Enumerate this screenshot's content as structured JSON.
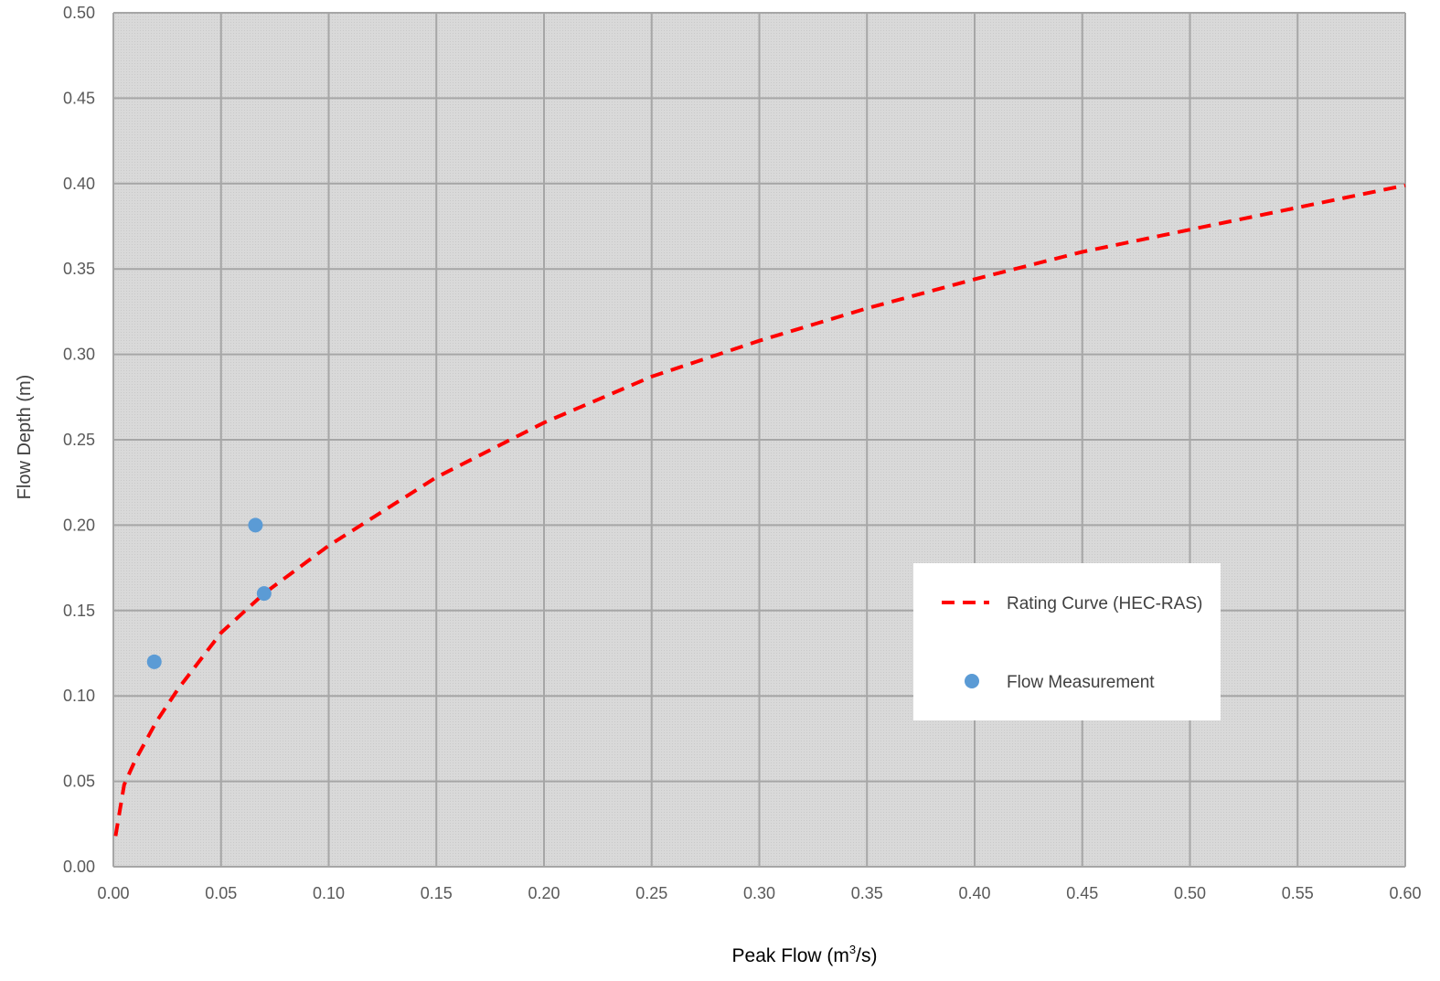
{
  "chart_data": {
    "type": "scatter",
    "title": "",
    "xlabel": "Peak Flow (m",
    "xlabel_sup": "3",
    "xlabel_tail": "/s)",
    "ylabel": "Flow Depth (m)",
    "xlim": [
      0.0,
      0.6
    ],
    "ylim": [
      0.0,
      0.5
    ],
    "x_ticks": [
      "0.00",
      "0.05",
      "0.10",
      "0.15",
      "0.20",
      "0.25",
      "0.30",
      "0.35",
      "0.40",
      "0.45",
      "0.50",
      "0.55",
      "0.60"
    ],
    "y_ticks": [
      "0.00",
      "0.05",
      "0.10",
      "0.15",
      "0.20",
      "0.25",
      "0.30",
      "0.35",
      "0.40",
      "0.45",
      "0.50"
    ],
    "grid": true,
    "legend_position": "center-right",
    "series": [
      {
        "name": "Rating Curve (HEC-RAS)",
        "kind": "line",
        "style": "dashed",
        "color": "#ff0000",
        "x": [
          0.001,
          0.005,
          0.01,
          0.02,
          0.03,
          0.05,
          0.07,
          0.1,
          0.15,
          0.2,
          0.25,
          0.3,
          0.35,
          0.4,
          0.45,
          0.5,
          0.55,
          0.6
        ],
        "y": [
          0.018,
          0.048,
          0.062,
          0.085,
          0.104,
          0.137,
          0.16,
          0.188,
          0.228,
          0.26,
          0.287,
          0.308,
          0.327,
          0.344,
          0.36,
          0.373,
          0.386,
          0.399
        ]
      },
      {
        "name": "Flow Measurement",
        "kind": "scatter",
        "color": "#5b9bd5",
        "x": [
          0.019,
          0.066,
          0.07
        ],
        "y": [
          0.12,
          0.2,
          0.16
        ]
      }
    ]
  }
}
